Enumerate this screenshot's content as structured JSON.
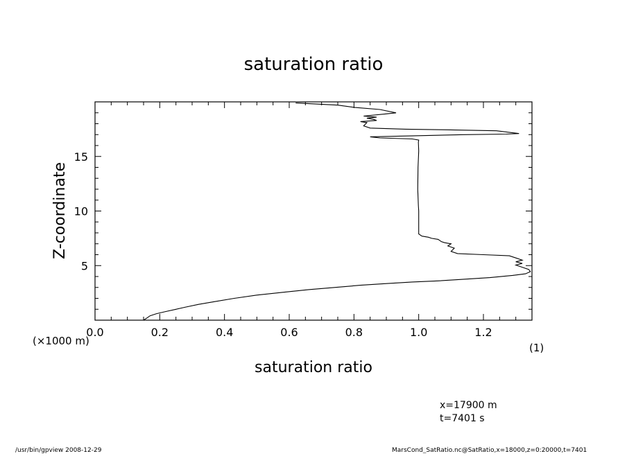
{
  "chart_data": {
    "type": "line",
    "title": "saturation ratio",
    "xlabel": "saturation ratio",
    "ylabel": "Z-coordinate",
    "x_unit_label": "(1)",
    "y_unit_label": "(×1000 m)",
    "xlim": [
      0.0,
      1.35
    ],
    "ylim": [
      0.0,
      20.0
    ],
    "x_ticks": [
      0.0,
      0.2,
      0.4,
      0.6,
      0.8,
      1.0,
      1.2
    ],
    "x_tick_labels": [
      "0.0",
      "0.2",
      "0.4",
      "0.6",
      "0.8",
      "1.0",
      "1.2"
    ],
    "y_ticks": [
      5,
      10,
      15
    ],
    "y_tick_labels": [
      "5",
      "10",
      "15"
    ],
    "grid": false,
    "series": [
      {
        "color": "#000000",
        "x": [
          0.15,
          0.16,
          0.17,
          0.19,
          0.22,
          0.25,
          0.28,
          0.32,
          0.37,
          0.43,
          0.5,
          0.58,
          0.66,
          0.74,
          0.82,
          0.9,
          0.98,
          1.06,
          1.14,
          1.22,
          1.29,
          1.33,
          1.345,
          1.34,
          1.32,
          1.3,
          1.32,
          1.3,
          1.32,
          1.3,
          1.28,
          1.2,
          1.12,
          1.1,
          1.11,
          1.09,
          1.1,
          1.08,
          1.07,
          1.06,
          1.04,
          1.03,
          1.01,
          1.0,
          1.0,
          1.0,
          0.999,
          0.997,
          0.998,
          1.0,
          0.999,
          1.0,
          0.98,
          0.88,
          0.85,
          0.93,
          1.0,
          1.14,
          1.27,
          1.31,
          1.24,
          1.07,
          0.96,
          0.85,
          0.83,
          0.84,
          0.82,
          0.87,
          0.86,
          0.84,
          0.87,
          0.83,
          0.9,
          0.93,
          0.88,
          0.8,
          0.75,
          0.62
        ],
        "y": [
          0.0,
          0.2,
          0.4,
          0.6,
          0.8,
          1.0,
          1.2,
          1.45,
          1.7,
          2.0,
          2.3,
          2.55,
          2.8,
          3.0,
          3.2,
          3.35,
          3.5,
          3.6,
          3.75,
          3.9,
          4.1,
          4.25,
          4.45,
          4.65,
          4.85,
          5.05,
          5.2,
          5.35,
          5.5,
          5.7,
          5.9,
          6.0,
          6.1,
          6.3,
          6.6,
          6.8,
          7.0,
          7.1,
          7.2,
          7.4,
          7.5,
          7.6,
          7.7,
          7.9,
          9.0,
          10.0,
          10.5,
          12.0,
          14.0,
          15.5,
          16.3,
          16.5,
          16.6,
          16.7,
          16.8,
          16.85,
          16.9,
          17.0,
          17.05,
          17.1,
          17.35,
          17.45,
          17.5,
          17.6,
          17.8,
          18.1,
          18.2,
          18.3,
          18.4,
          18.5,
          18.6,
          18.7,
          18.9,
          19.0,
          19.3,
          19.5,
          19.7,
          19.9
        ]
      }
    ]
  },
  "annotations": {
    "position_x": "x=17900  m",
    "time": "t=7401  s"
  },
  "footer": {
    "left": "/usr/bin/gpview   2008-12-29",
    "right": "MarsCond_SatRatio.nc@SatRatio,x=18000,z=0:20000,t=7401"
  }
}
